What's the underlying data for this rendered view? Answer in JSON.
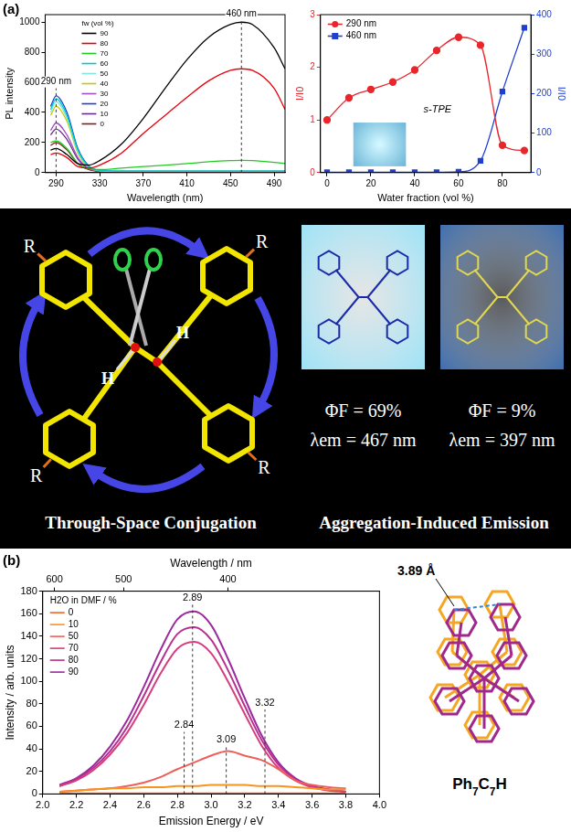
{
  "chart_data": [
    {
      "type": "line",
      "panel": "(a)",
      "x_label": "Wavelength (nm)",
      "y_label": "PL intensity",
      "legend_title": "fw (vol %)",
      "legend": "upper left",
      "grid": false,
      "x": [
        285,
        290,
        300,
        310,
        320,
        330,
        350,
        370,
        390,
        410,
        430,
        450,
        460,
        470,
        490,
        500
      ],
      "series": [
        {
          "name": "90",
          "color": "#000000",
          "values": [
            150,
            160,
            120,
            60,
            50,
            80,
            190,
            360,
            560,
            750,
            900,
            985,
            1000,
            985,
            830,
            690
          ]
        },
        {
          "name": "80",
          "color": "#e8000b",
          "values": [
            120,
            130,
            100,
            40,
            30,
            50,
            130,
            260,
            380,
            500,
            610,
            680,
            690,
            680,
            560,
            420
          ]
        },
        {
          "name": "70",
          "color": "#22c922",
          "values": [
            200,
            210,
            160,
            60,
            25,
            20,
            30,
            40,
            50,
            60,
            72,
            80,
            82,
            80,
            68,
            60
          ]
        },
        {
          "name": "60",
          "color": "#00c8d0",
          "values": [
            420,
            490,
            380,
            150,
            40,
            15,
            10,
            10,
            10,
            10,
            10,
            10,
            10,
            10,
            10,
            10
          ]
        },
        {
          "name": "50",
          "color": "#80e8d8",
          "values": [
            400,
            470,
            360,
            140,
            38,
            14,
            10,
            10,
            10,
            10,
            10,
            10,
            10,
            10,
            10,
            10
          ]
        },
        {
          "name": "40",
          "color": "#c8c800",
          "values": [
            380,
            440,
            340,
            130,
            35,
            12,
            8,
            8,
            8,
            8,
            8,
            8,
            8,
            8,
            8,
            8
          ]
        },
        {
          "name": "30",
          "color": "#a050c0",
          "values": [
            280,
            330,
            250,
            100,
            28,
            10,
            6,
            6,
            6,
            6,
            6,
            6,
            6,
            6,
            6,
            6
          ]
        },
        {
          "name": "20",
          "color": "#1f3fd1",
          "values": [
            440,
            510,
            400,
            160,
            45,
            16,
            10,
            10,
            10,
            10,
            10,
            10,
            10,
            10,
            10,
            10
          ]
        },
        {
          "name": "10",
          "color": "#6a2a8a",
          "values": [
            250,
            290,
            220,
            90,
            25,
            10,
            6,
            6,
            6,
            6,
            6,
            6,
            6,
            6,
            6,
            6
          ]
        },
        {
          "name": "0",
          "color": "#8b1a1a",
          "values": [
            180,
            200,
            150,
            60,
            20,
            8,
            5,
            5,
            5,
            5,
            5,
            5,
            5,
            5,
            5,
            5
          ]
        }
      ],
      "xlim": [
        280,
        500
      ],
      "xticks": [
        290,
        330,
        370,
        410,
        450,
        490
      ],
      "ylim": [
        0,
        1050
      ],
      "yticks": [
        0,
        200,
        400,
        600,
        800,
        1000
      ],
      "annotations": [
        {
          "text": "290 nm",
          "x": 290,
          "y": 560
        },
        {
          "text": "460 nm",
          "x": 460,
          "y": 1010
        }
      ]
    },
    {
      "type": "line",
      "x_label": "Water fraction (vol %)",
      "y_label": "I/I0",
      "y2_label": "I/I0",
      "legend": "upper left",
      "grid": false,
      "inset_label": "s-TPE",
      "x": [
        0,
        10,
        20,
        30,
        40,
        50,
        60,
        70,
        80,
        90
      ],
      "series": [
        {
          "name": "290 nm",
          "color": "#e8262b",
          "marker": "circle",
          "values": [
            1.0,
            1.42,
            1.58,
            1.72,
            1.95,
            2.32,
            2.57,
            2.42,
            0.52,
            0.42
          ]
        },
        {
          "name": "460 nm",
          "color": "#1f3fd1",
          "marker": "square",
          "axis": "y2",
          "values": [
            1,
            1,
            1,
            1,
            1,
            1,
            2,
            30,
            205,
            367
          ]
        }
      ],
      "xlim": [
        -3,
        93
      ],
      "xticks": [
        0,
        20,
        40,
        60,
        80
      ],
      "ylim": [
        0,
        3
      ],
      "yticks": [
        0,
        1,
        2,
        3
      ],
      "y2lim": [
        0,
        400
      ],
      "y2ticks": [
        0,
        100,
        200,
        300,
        400
      ]
    },
    {
      "type": "line",
      "panel": "(b)",
      "x_label": "Emission Energy / eV",
      "x2_label": "Wavelength / nm",
      "y_label": "Intensity / arb. units",
      "legend_title": "H2O in DMF / %",
      "legend": "upper left",
      "grid": false,
      "x": [
        2.1,
        2.2,
        2.3,
        2.4,
        2.5,
        2.6,
        2.7,
        2.8,
        2.9,
        3.0,
        3.1,
        3.2,
        3.3,
        3.4,
        3.5,
        3.6,
        3.7,
        3.8
      ],
      "series": [
        {
          "name": "0",
          "color": "#f26522",
          "values": [
            0.5,
            0.5,
            0.5,
            0.5,
            0.5,
            0.5,
            0.5,
            0.5,
            0.5,
            0.5,
            0.5,
            0.5,
            0.5,
            0.5,
            0.5,
            0.5,
            0.5,
            0.5
          ]
        },
        {
          "name": "10",
          "color": "#f7941d",
          "values": [
            2,
            3,
            4,
            5,
            5,
            6,
            6,
            7,
            7,
            8,
            8,
            8,
            7,
            7,
            6,
            5,
            4,
            4
          ]
        },
        {
          "name": "50",
          "color": "#ee5f5b",
          "values": [
            2,
            3,
            4,
            5,
            7,
            10,
            15,
            22,
            28,
            34,
            38,
            34,
            30,
            22,
            12,
            8,
            6,
            5
          ]
        },
        {
          "name": "70",
          "color": "#d63d7f",
          "values": [
            7,
            12,
            21,
            35,
            54,
            79,
            107,
            129,
            135,
            125,
            100,
            71,
            43,
            23,
            12,
            6,
            3,
            2
          ]
        },
        {
          "name": "80",
          "color": "#b8308f",
          "values": [
            7,
            13,
            23,
            38,
            59,
            87,
            117,
            142,
            148,
            137,
            110,
            78,
            48,
            26,
            13,
            6,
            4,
            2
          ]
        },
        {
          "name": "90",
          "color": "#9b2a9e",
          "values": [
            8,
            14,
            25,
            42,
            65,
            95,
            128,
            155,
            162,
            150,
            120,
            85,
            52,
            28,
            14,
            7,
            4,
            2
          ]
        }
      ],
      "xlim": [
        2.0,
        4.0
      ],
      "xticks": [
        {
          "value": 2,
          "label": "2.0"
        },
        2.2,
        2.4,
        2.6,
        2.8,
        {
          "value": 3,
          "label": "3.0"
        },
        3.2,
        3.4,
        3.6,
        3.8,
        {
          "value": 4,
          "label": "4.0"
        }
      ],
      "x2lim": [
        2.0,
        4.0
      ],
      "x2ticks": [
        {
          "value": 2.07,
          "label": "600"
        },
        {
          "value": 2.48,
          "label": "500"
        },
        {
          "value": 3.1,
          "label": "400"
        }
      ],
      "ylim": [
        0,
        180
      ],
      "yticks": [
        0,
        20,
        40,
        60,
        80,
        100,
        120,
        140,
        160,
        180
      ],
      "annotations": [
        {
          "text": "2.89",
          "x": 2.89,
          "y": 168
        },
        {
          "text": "3.09",
          "x": 3.09,
          "y": 42
        },
        {
          "text": "3.32",
          "x": 3.32,
          "y": 75
        },
        {
          "text": "2.84",
          "x": 2.84,
          "y": 55
        }
      ]
    }
  ],
  "diagram": {
    "left_caption": "Through-Space Conjugation",
    "right_caption": "Aggregation-Induced Emission",
    "substituent": "R",
    "hydrogen": "H",
    "photos": [
      {
        "quantum_yield": "ΦF = 69%",
        "emission": "λem = 467 nm",
        "color": "#9fe3f7"
      },
      {
        "quantum_yield": "ΦF = 9%",
        "emission": "λem = 397 nm",
        "color": "#3f6fb0"
      }
    ]
  },
  "structure": {
    "distance_label": "3.89 Å",
    "name": "Ph7C7H",
    "colors": [
      "#f5a623",
      "#a0288c"
    ]
  }
}
